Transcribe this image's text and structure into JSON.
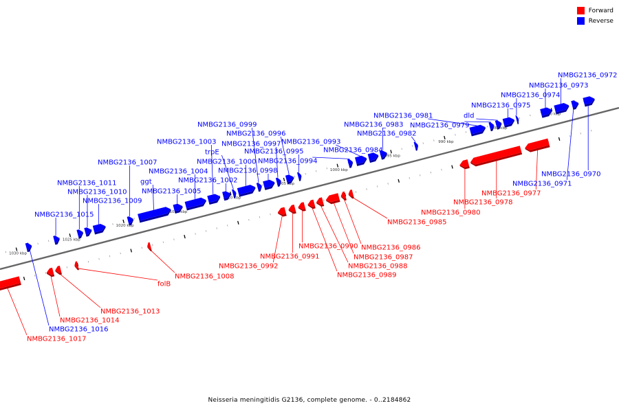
{
  "colors": {
    "forward": "#ff0000",
    "reverse": "#0000ff",
    "forward_dark": "#b00000",
    "reverse_dark": "#0000a0",
    "backbone": "#666666"
  },
  "legend": {
    "forward": "Forward",
    "reverse": "Reverse"
  },
  "caption": "Neisseria meningitidis G2136, complete genome. - 0..2184862",
  "chart_data": {
    "type": "genome-map",
    "title": "Neisseria meningitidis G2136, complete genome. - 0..2184862",
    "sequence_range": [
      0,
      2184862
    ],
    "tick_labels": [
      {
        "kbp": 980,
        "label": "980 kbp"
      },
      {
        "kbp": 985,
        "label": "985 kbp"
      },
      {
        "kbp": 990,
        "label": "990 kbp"
      },
      {
        "kbp": 995,
        "label": "995 kbp"
      },
      {
        "kbp": 1000,
        "label": "1000 kbp"
      },
      {
        "kbp": 1005,
        "label": "1005 kbp"
      },
      {
        "kbp": 1010,
        "label": "1010 kbp"
      },
      {
        "kbp": 1015,
        "label": "1015 kbp"
      },
      {
        "kbp": 1020,
        "label": "1020 kbp"
      },
      {
        "kbp": 1025,
        "label": "1025 kbp"
      },
      {
        "kbp": 1030,
        "label": "1030 kbp"
      }
    ],
    "forward_genes": [
      {
        "name": "NMBG2136_0977",
        "start": 981.0,
        "end": 983.2,
        "label_index": 0
      },
      {
        "name": "NMBG2136_0978",
        "start": 983.6,
        "end": 988.3,
        "label_index": 1
      },
      {
        "name": "NMBG2136_0980",
        "start": 988.5,
        "end": 989.3,
        "label_index": 2
      },
      {
        "name": "NMBG2136_0985",
        "start": 999.3,
        "end": 999.7,
        "label_index": 3
      },
      {
        "name": "NMBG2136_0986",
        "start": 1000.0,
        "end": 1000.4,
        "label_index": 4
      },
      {
        "name": "NMBG2136_0987",
        "start": 1000.6,
        "end": 1001.8,
        "label_index": 5
      },
      {
        "name": "NMBG2136_0988",
        "start": 1002.1,
        "end": 1002.7,
        "label_index": 6
      },
      {
        "name": "NMBG2136_0989",
        "start": 1002.9,
        "end": 1003.5,
        "label_index": 7
      },
      {
        "name": "NMBG2136_0990",
        "start": 1003.8,
        "end": 1004.4,
        "label_index": 8
      },
      {
        "name": "NMBG2136_0991",
        "start": 1004.7,
        "end": 1005.3,
        "label_index": 9
      },
      {
        "name": "NMBG2136_0992",
        "start": 1005.6,
        "end": 1006.3,
        "label_index": 10
      },
      {
        "name": "NMBG2136_1008",
        "start": 1018.2,
        "end": 1018.5,
        "label_index": 11
      },
      {
        "name": "folB",
        "start": 1025.0,
        "end": 1025.3,
        "label_index": 12
      },
      {
        "name": "NMBG2136_1013",
        "start": 1026.6,
        "end": 1027.1,
        "label_index": 13
      },
      {
        "name": "NMBG2136_1014",
        "start": 1027.3,
        "end": 1027.9,
        "label_index": 14
      },
      {
        "name": "NMBG2136_1017",
        "start": 1030.4,
        "end": 1033.0,
        "label_index": 15
      }
    ],
    "reverse_genes": [
      {
        "name": "NMBG2136_0970",
        "start": 976.0,
        "end": 977.0,
        "label_index": 0
      },
      {
        "name": "NMBG2136_0971",
        "start": 977.5,
        "end": 978.1,
        "label_index": 1
      },
      {
        "name": "NMBG2136_0972",
        "start": 978.4,
        "end": 979.7,
        "label_index": 2
      },
      {
        "name": "NMBG2136_0973",
        "start": 980.0,
        "end": 981.0,
        "label_index": 3
      },
      {
        "name": "NMBG2136_0974",
        "start": 983.1,
        "end": 983.3,
        "label_index": 4
      },
      {
        "name": "NMBG2136_0975",
        "start": 983.5,
        "end": 984.5,
        "label_index": 5
      },
      {
        "name": "dld",
        "start": 984.7,
        "end": 985.2,
        "label_index": 6
      },
      {
        "name": "NMBG2136_0979",
        "start": 985.4,
        "end": 985.8,
        "label_index": 7
      },
      {
        "name": "NMBG2136_0981",
        "start": 986.2,
        "end": 987.6,
        "label_index": 8
      },
      {
        "name": "NMBG2136_0982",
        "start": 992.5,
        "end": 992.8,
        "label_index": 9
      },
      {
        "name": "NMBG2136_0983",
        "start": 995.4,
        "end": 996.0,
        "label_index": 10
      },
      {
        "name": "NMBG2136_0984",
        "start": 996.2,
        "end": 997.1,
        "label_index": 11
      },
      {
        "name": "NMBG2136_0993",
        "start": 997.3,
        "end": 998.3,
        "label_index": 12
      },
      {
        "name": "NMBG2136_0994",
        "start": 998.6,
        "end": 999.0,
        "label_index": 13
      },
      {
        "name": "NMBG2136_0995",
        "start": 1003.4,
        "end": 1003.7,
        "label_index": 14
      },
      {
        "name": "NMBG2136_0996",
        "start": 1004.1,
        "end": 1004.8,
        "label_index": 15
      },
      {
        "name": "NMBG2136_0997",
        "start": 1005.3,
        "end": 1005.7,
        "label_index": 16
      },
      {
        "name": "NMBG2136_0998",
        "start": 1005.9,
        "end": 1006.9,
        "label_index": 17
      },
      {
        "name": "NMBG2136_0999",
        "start": 1007.1,
        "end": 1007.5,
        "label_index": 18
      },
      {
        "name": "NMBG2136_1000",
        "start": 1007.7,
        "end": 1009.3,
        "label_index": 19
      },
      {
        "name": "trpE",
        "start": 1009.5,
        "end": 1009.8,
        "label_index": 20
      },
      {
        "name": "NMBG2136_1002",
        "start": 1010.0,
        "end": 1010.7,
        "label_index": 21
      },
      {
        "name": "NMBG2136_1003",
        "start": 1011.0,
        "end": 1012.1,
        "label_index": 22
      },
      {
        "name": "NMBG2136_1004",
        "start": 1012.3,
        "end": 1014.2,
        "label_index": 23
      },
      {
        "name": "NMBG2136_1005",
        "start": 1014.5,
        "end": 1015.3,
        "label_index": 24
      },
      {
        "name": "ggt",
        "start": 1015.6,
        "end": 1018.6,
        "label_index": 25
      },
      {
        "name": "NMBG2136_1007",
        "start": 1019.1,
        "end": 1019.6,
        "label_index": 26
      },
      {
        "name": "NMBG2136_1009",
        "start": 1021.7,
        "end": 1022.8,
        "label_index": 27
      },
      {
        "name": "NMBG2136_1010",
        "start": 1023.0,
        "end": 1023.6,
        "label_index": 28
      },
      {
        "name": "NMBG2136_1011",
        "start": 1023.8,
        "end": 1024.3,
        "label_index": 29
      },
      {
        "name": "NMBG2136_1015",
        "start": 1026.0,
        "end": 1026.5,
        "label_index": 30
      },
      {
        "name": "NMBG2136_1016",
        "start": 1028.6,
        "end": 1029.1,
        "label_index": 31
      }
    ],
    "forward_labels": [
      "NMBG2136_0977",
      "NMBG2136_0978",
      "NMBG2136_0980",
      "NMBG2136_0985",
      "NMBG2136_0986",
      "NMBG2136_0987",
      "NMBG2136_0988",
      "NMBG2136_0989",
      "NMBG2136_0990",
      "NMBG2136_0991",
      "NMBG2136_0992",
      "NMBG2136_1008",
      "folB",
      "NMBG2136_1013",
      "NMBG2136_1014",
      "NMBG2136_1017"
    ],
    "reverse_labels": [
      "NMBG2136_0970",
      "NMBG2136_0971",
      "NMBG2136_0972",
      "NMBG2136_0973",
      "NMBG2136_0974",
      "NMBG2136_0975",
      "dld",
      "NMBG2136_0979",
      "NMBG2136_0981",
      "NMBG2136_0982",
      "NMBG2136_0983",
      "NMBG2136_0984",
      "NMBG2136_0993",
      "NMBG2136_0994",
      "NMBG2136_0995",
      "NMBG2136_0996",
      "NMBG2136_0997",
      "NMBG2136_0998",
      "NMBG2136_0999",
      "NMBG2136_1000",
      "trpE",
      "NMBG2136_1002",
      "NMBG2136_1003",
      "NMBG2136_1004",
      "NMBG2136_1005",
      "ggt",
      "NMBG2136_1007",
      "NMBG2136_1009",
      "NMBG2136_1010",
      "NMBG2136_1011",
      "NMBG2136_1015",
      "NMBG2136_1016"
    ]
  }
}
